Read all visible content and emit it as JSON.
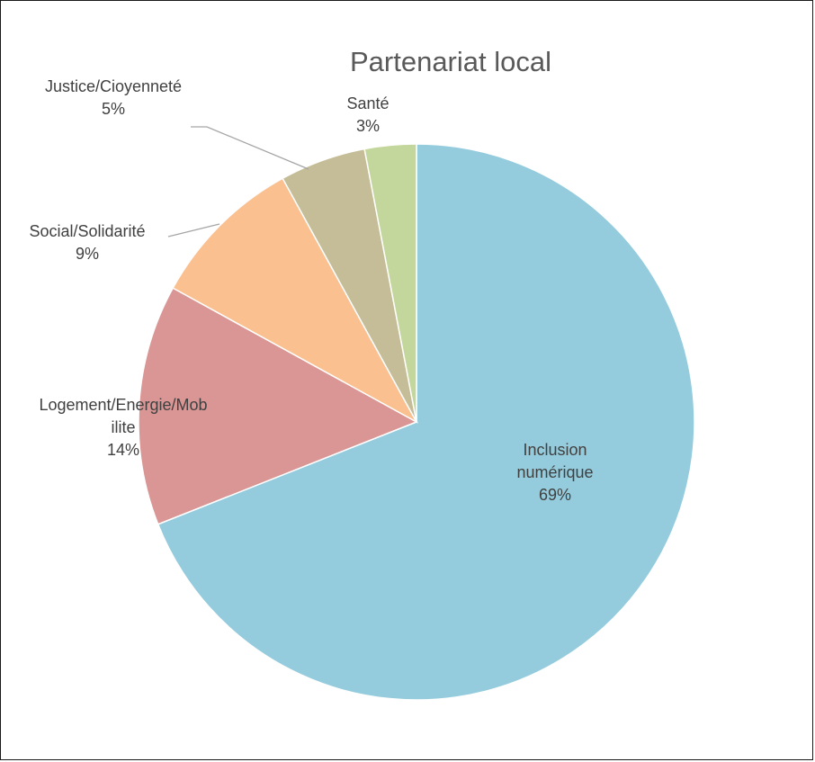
{
  "chart_data": {
    "type": "pie",
    "title": "Partenariat local",
    "start_angle_deg": 0,
    "direction": "clockwise",
    "slices": [
      {
        "label": "Inclusion numérique",
        "percent_label": "69%",
        "value": 69,
        "color": "#95CCDD"
      },
      {
        "label": "Logement/Energie/Mobilite",
        "percent_label": "14%",
        "value": 14,
        "color": "#D99694"
      },
      {
        "label": "Social/Solidarité",
        "percent_label": "9%",
        "value": 9,
        "color": "#FAC090"
      },
      {
        "label": "Justice/Cioyenneté",
        "percent_label": "5%",
        "value": 5,
        "color": "#C4BD97"
      },
      {
        "label": "Santé",
        "percent_label": "3%",
        "value": 3,
        "color": "#C3D69B"
      }
    ],
    "legend": "none",
    "data_labels": "category-and-percent"
  }
}
